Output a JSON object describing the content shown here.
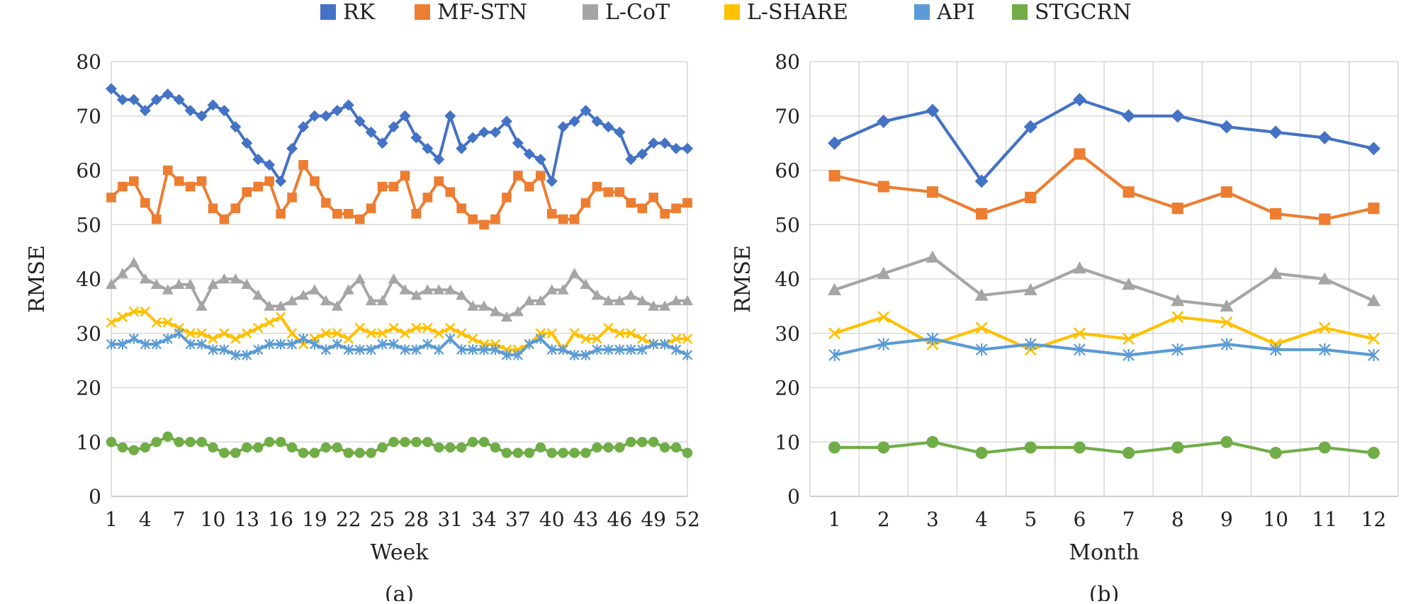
{
  "legend": [
    {
      "name": "RK",
      "color": "#4472C4",
      "marker": "diamond"
    },
    {
      "name": "MF-STN",
      "color": "#ED7D31",
      "marker": "square"
    },
    {
      "name": "L-CoT",
      "color": "#A5A5A5",
      "marker": "triangle"
    },
    {
      "name": "L-SHARE",
      "color": "#FFC000",
      "marker": "x"
    },
    {
      "name": "API",
      "color": "#5B9BD5",
      "marker": "asterisk"
    },
    {
      "name": "STGCRN",
      "color": "#70AD47",
      "marker": "circle"
    }
  ],
  "chart_data": [
    {
      "type": "line",
      "caption": "(a)",
      "xlabel": "Week",
      "ylabel": "RMSE",
      "ylim": [
        0,
        80
      ],
      "yticks": [
        0,
        10,
        20,
        30,
        40,
        50,
        60,
        70,
        80
      ],
      "x": [
        1,
        2,
        3,
        4,
        5,
        6,
        7,
        8,
        9,
        10,
        11,
        12,
        13,
        14,
        15,
        16,
        17,
        18,
        19,
        20,
        21,
        22,
        23,
        24,
        25,
        26,
        27,
        28,
        29,
        30,
        31,
        32,
        33,
        34,
        35,
        36,
        37,
        38,
        39,
        40,
        41,
        42,
        43,
        44,
        45,
        46,
        47,
        48,
        49,
        50,
        51,
        52
      ],
      "xticks": [
        1,
        4,
        7,
        10,
        13,
        16,
        19,
        22,
        25,
        28,
        31,
        34,
        37,
        40,
        43,
        46,
        49,
        52
      ],
      "grid": true,
      "series": [
        {
          "name": "RK",
          "values": [
            75,
            73,
            73,
            71,
            73,
            74,
            73,
            71,
            70,
            72,
            71,
            68,
            65,
            62,
            61,
            58,
            64,
            68,
            70,
            70,
            71,
            72,
            69,
            67,
            65,
            68,
            70,
            66,
            64,
            62,
            70,
            64,
            66,
            67,
            67,
            69,
            65,
            63,
            62,
            58,
            68,
            69,
            71,
            69,
            68,
            67,
            62,
            63,
            65,
            65,
            64,
            64
          ]
        },
        {
          "name": "MF-STN",
          "values": [
            55,
            57,
            58,
            54,
            51,
            60,
            58,
            57,
            58,
            53,
            51,
            53,
            56,
            57,
            58,
            52,
            55,
            61,
            58,
            54,
            52,
            52,
            51,
            53,
            57,
            57,
            59,
            52,
            55,
            58,
            56,
            53,
            51,
            50,
            51,
            55,
            59,
            57,
            59,
            52,
            51,
            51,
            54,
            57,
            56,
            56,
            54,
            53,
            55,
            52,
            53,
            54
          ]
        },
        {
          "name": "L-CoT",
          "values": [
            39,
            41,
            43,
            40,
            39,
            38,
            39,
            39,
            35,
            39,
            40,
            40,
            39,
            37,
            35,
            35,
            36,
            37,
            38,
            36,
            35,
            38,
            40,
            36,
            36,
            40,
            38,
            37,
            38,
            38,
            38,
            37,
            35,
            35,
            34,
            33,
            34,
            36,
            36,
            38,
            38,
            41,
            39,
            37,
            36,
            36,
            37,
            36,
            35,
            35,
            36,
            36
          ]
        },
        {
          "name": "L-SHARE",
          "values": [
            32,
            33,
            34,
            34,
            32,
            32,
            31,
            30,
            30,
            29,
            30,
            29,
            30,
            31,
            32,
            33,
            30,
            28,
            29,
            30,
            30,
            29,
            31,
            30,
            30,
            31,
            30,
            31,
            31,
            30,
            31,
            30,
            29,
            28,
            28,
            27,
            27,
            28,
            30,
            30,
            27,
            30,
            29,
            29,
            31,
            30,
            30,
            29,
            28,
            28,
            29,
            29
          ]
        },
        {
          "name": "API",
          "values": [
            28,
            28,
            29,
            28,
            28,
            29,
            30,
            28,
            28,
            27,
            27,
            26,
            26,
            27,
            28,
            28,
            28,
            29,
            28,
            27,
            28,
            27,
            27,
            27,
            28,
            28,
            27,
            27,
            28,
            27,
            29,
            27,
            27,
            27,
            27,
            26,
            26,
            28,
            29,
            27,
            27,
            26,
            26,
            27,
            27,
            27,
            27,
            27,
            28,
            28,
            27,
            26
          ]
        },
        {
          "name": "STGCRN",
          "values": [
            10,
            9,
            8.5,
            9,
            10,
            11,
            10,
            10,
            10,
            9,
            8,
            8,
            9,
            9,
            10,
            10,
            9,
            8,
            8,
            9,
            9,
            8,
            8,
            8,
            9,
            10,
            10,
            10,
            10,
            9,
            9,
            9,
            10,
            10,
            9,
            8,
            8,
            8,
            9,
            8,
            8,
            8,
            8,
            9,
            9,
            9,
            10,
            10,
            10,
            9,
            9,
            8
          ]
        }
      ]
    },
    {
      "type": "line",
      "caption": "(b)",
      "xlabel": "Month",
      "ylabel": "RMSE",
      "ylim": [
        0,
        80
      ],
      "yticks": [
        0,
        10,
        20,
        30,
        40,
        50,
        60,
        70,
        80
      ],
      "x": [
        1,
        2,
        3,
        4,
        5,
        6,
        7,
        8,
        9,
        10,
        11,
        12
      ],
      "xticks": [
        1,
        2,
        3,
        4,
        5,
        6,
        7,
        8,
        9,
        10,
        11,
        12
      ],
      "grid": true,
      "series": [
        {
          "name": "RK",
          "values": [
            65,
            69,
            71,
            58,
            68,
            73,
            70,
            70,
            68,
            67,
            66,
            64
          ]
        },
        {
          "name": "MF-STN",
          "values": [
            59,
            57,
            56,
            52,
            55,
            63,
            56,
            53,
            56,
            52,
            51,
            53
          ]
        },
        {
          "name": "L-CoT",
          "values": [
            38,
            41,
            44,
            37,
            38,
            42,
            39,
            36,
            35,
            41,
            40,
            36
          ]
        },
        {
          "name": "L-SHARE",
          "values": [
            30,
            33,
            28,
            31,
            27,
            30,
            29,
            33,
            32,
            28,
            31,
            29
          ]
        },
        {
          "name": "API",
          "values": [
            26,
            28,
            29,
            27,
            28,
            27,
            26,
            27,
            28,
            27,
            27,
            26
          ]
        },
        {
          "name": "STGCRN",
          "values": [
            9,
            9,
            10,
            8,
            9,
            9,
            8,
            9,
            10,
            8,
            9,
            8
          ]
        }
      ]
    }
  ]
}
